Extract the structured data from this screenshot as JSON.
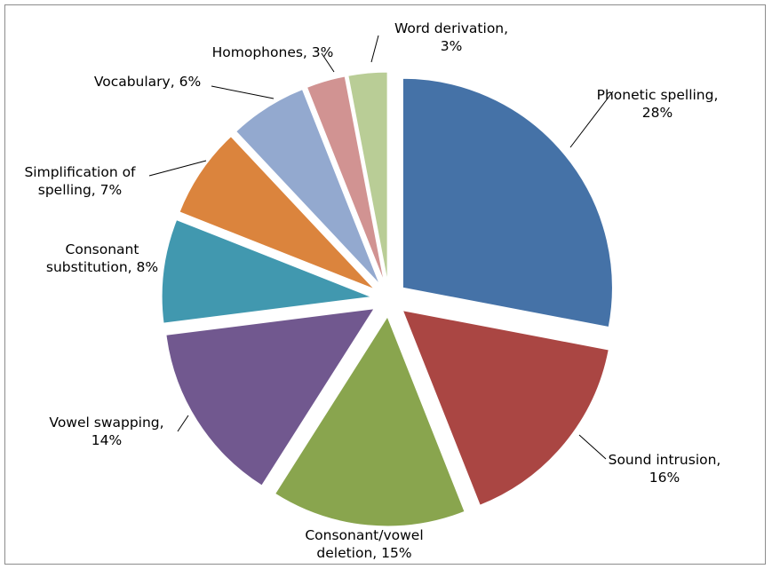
{
  "chart_data": {
    "type": "pie",
    "exploded": true,
    "legend": "none",
    "slices": [
      {
        "label": "Phonetic spelling",
        "value": 28,
        "label_lines": [
          "Phonetic spelling,",
          "28%"
        ],
        "color": "#4572A7"
      },
      {
        "label": "Sound intrusion",
        "value": 16,
        "label_lines": [
          "Sound intrusion,",
          "16%"
        ],
        "color": "#AA4643"
      },
      {
        "label": "Consonant/vowel deletion",
        "value": 15,
        "label_lines": [
          "Consonant/vowel",
          "deletion, 15%"
        ],
        "color": "#89A54E"
      },
      {
        "label": "Vowel swapping",
        "value": 14,
        "label_lines": [
          "Vowel swapping,",
          "14%"
        ],
        "color": "#71588F"
      },
      {
        "label": "Consonant substitution",
        "value": 8,
        "label_lines": [
          "Consonant",
          "substitution, 8%"
        ],
        "color": "#4198AF"
      },
      {
        "label": "Simplification of spelling",
        "value": 7,
        "label_lines": [
          "Simplification of",
          "spelling, 7%"
        ],
        "color": "#DB843D"
      },
      {
        "label": "Vocabulary",
        "value": 6,
        "label_lines": [
          "Vocabulary, 6%"
        ],
        "color": "#93A9CF"
      },
      {
        "label": "Homophones",
        "value": 3,
        "label_lines": [
          "Homophones, 3%"
        ],
        "color": "#D19392"
      },
      {
        "label": "Word derivation",
        "value": 3,
        "label_lines": [
          "Word derivation,",
          "3%"
        ],
        "color": "#B9CD96"
      }
    ]
  }
}
